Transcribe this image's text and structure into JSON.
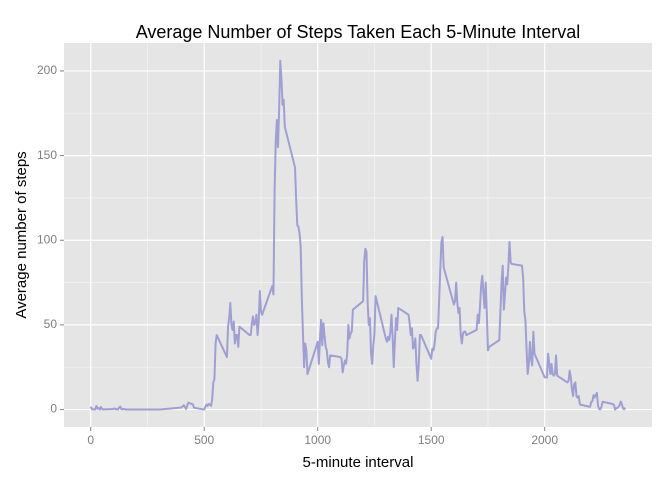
{
  "chart_data": {
    "type": "line",
    "title": "Average Number of Steps Taken Each 5-Minute Interval",
    "x_label": "5-minute interval",
    "y_label": "Average number of steps",
    "color": "#9f9fd3",
    "grid": true,
    "xlim": [
      -117.75,
      2472.75
    ],
    "ylim": [
      -10.3,
      216.5
    ],
    "xticks": [
      0,
      500,
      1000,
      1500,
      2000
    ],
    "yticks": [
      0,
      50,
      100,
      150,
      200
    ],
    "x": [
      0,
      5,
      10,
      15,
      20,
      25,
      30,
      35,
      40,
      45,
      50,
      55,
      100,
      105,
      110,
      115,
      120,
      125,
      130,
      135,
      140,
      145,
      150,
      155,
      200,
      230,
      300,
      330,
      400,
      410,
      420,
      430,
      440,
      450,
      455,
      500,
      505,
      510,
      515,
      520,
      525,
      530,
      535,
      540,
      545,
      550,
      555,
      600,
      605,
      610,
      615,
      620,
      625,
      630,
      635,
      640,
      645,
      650,
      655,
      700,
      705,
      710,
      715,
      720,
      725,
      730,
      735,
      740,
      745,
      750,
      755,
      800,
      805,
      810,
      815,
      820,
      825,
      830,
      835,
      840,
      845,
      850,
      855,
      900,
      905,
      910,
      915,
      920,
      925,
      930,
      935,
      940,
      945,
      950,
      955,
      1000,
      1005,
      1010,
      1015,
      1020,
      1025,
      1030,
      1035,
      1040,
      1045,
      1050,
      1055,
      1100,
      1105,
      1110,
      1115,
      1120,
      1125,
      1130,
      1135,
      1140,
      1145,
      1150,
      1155,
      1200,
      1205,
      1210,
      1215,
      1220,
      1225,
      1230,
      1235,
      1240,
      1245,
      1250,
      1255,
      1300,
      1305,
      1310,
      1315,
      1320,
      1325,
      1330,
      1335,
      1340,
      1345,
      1350,
      1355,
      1400,
      1405,
      1410,
      1415,
      1420,
      1425,
      1430,
      1435,
      1440,
      1445,
      1450,
      1455,
      1500,
      1505,
      1510,
      1515,
      1520,
      1525,
      1530,
      1535,
      1540,
      1545,
      1550,
      1555,
      1600,
      1605,
      1610,
      1615,
      1620,
      1625,
      1630,
      1635,
      1640,
      1645,
      1650,
      1655,
      1700,
      1705,
      1710,
      1715,
      1720,
      1725,
      1730,
      1735,
      1740,
      1745,
      1750,
      1755,
      1800,
      1805,
      1810,
      1815,
      1820,
      1825,
      1830,
      1835,
      1840,
      1845,
      1850,
      1855,
      1900,
      1905,
      1910,
      1915,
      1920,
      1925,
      1930,
      1935,
      1940,
      1945,
      1950,
      1955,
      2000,
      2005,
      2010,
      2015,
      2020,
      2025,
      2030,
      2035,
      2040,
      2045,
      2050,
      2055,
      2100,
      2105,
      2110,
      2115,
      2120,
      2125,
      2130,
      2135,
      2140,
      2145,
      2150,
      2155,
      2200,
      2205,
      2210,
      2215,
      2220,
      2225,
      2230,
      2235,
      2240,
      2245,
      2250,
      2255,
      2300,
      2305,
      2310,
      2315,
      2320,
      2325,
      2330,
      2335,
      2340,
      2345,
      2350,
      2355
    ],
    "values": [
      1.7,
      0.3,
      0.1,
      0.2,
      0.1,
      2.1,
      0.5,
      0.9,
      0,
      1.5,
      0.3,
      0.1,
      0.3,
      0.7,
      0.2,
      0.3,
      0,
      1.1,
      1.8,
      0.2,
      0.2,
      0.4,
      0.3,
      0,
      0,
      0,
      0,
      0.3,
      1.2,
      2.6,
      0.3,
      4.1,
      3.5,
      3.1,
      1.1,
      0,
      1.6,
      3,
      2.2,
      3.3,
      3,
      2.1,
      6,
      16,
      18,
      39,
      44,
      31,
      49,
      54,
      63,
      50,
      47,
      52,
      39,
      44,
      44,
      37,
      49,
      44,
      44,
      51,
      55,
      50,
      51,
      56,
      44,
      52,
      70,
      58,
      56,
      73,
      68,
      129,
      158,
      171,
      155,
      177,
      206,
      196,
      180,
      183,
      167,
      143,
      124,
      109,
      108,
      104,
      96,
      66,
      45,
      25,
      39,
      35,
      21,
      40,
      27,
      42,
      53,
      38,
      51,
      44,
      37,
      35,
      28,
      25,
      32,
      31,
      30,
      22,
      26,
      29,
      27,
      33,
      50,
      42,
      45,
      46,
      59,
      64,
      88,
      95,
      93,
      63,
      50,
      54,
      33,
      27,
      38,
      45,
      67,
      42,
      40,
      43,
      41,
      46,
      56,
      43,
      25,
      40,
      54,
      47,
      60,
      56,
      51,
      44,
      48,
      36,
      37,
      42,
      27,
      17,
      26,
      44,
      44,
      30,
      36,
      35,
      39,
      46,
      48,
      48,
      65,
      83,
      99,
      102,
      84,
      62,
      64,
      75,
      63,
      57,
      60,
      44,
      39,
      45,
      46,
      46,
      44,
      47,
      56,
      51,
      61,
      73,
      79,
      69,
      60,
      75,
      57,
      35,
      37,
      41,
      58,
      75,
      85,
      59,
      68,
      78,
      74,
      85,
      99,
      87,
      86,
      85,
      78,
      58,
      53,
      36,
      21,
      27,
      40,
      30,
      26,
      46,
      33,
      19,
      19,
      19,
      33,
      27,
      21,
      27,
      21,
      20,
      21,
      32,
      20,
      16,
      17,
      23,
      19,
      12,
      8,
      15,
      16,
      8,
      7,
      8,
      3,
      1.6,
      4.6,
      4.8,
      8.5,
      7.1,
      8.7,
      9.8,
      2.2,
      0.3,
      0.1,
      1.6,
      4.6,
      3.3,
      2.8,
      0,
      0.8,
      1,
      1.6,
      2.6,
      4.7,
      3.3,
      0.6,
      0.2,
      1.1
    ]
  }
}
